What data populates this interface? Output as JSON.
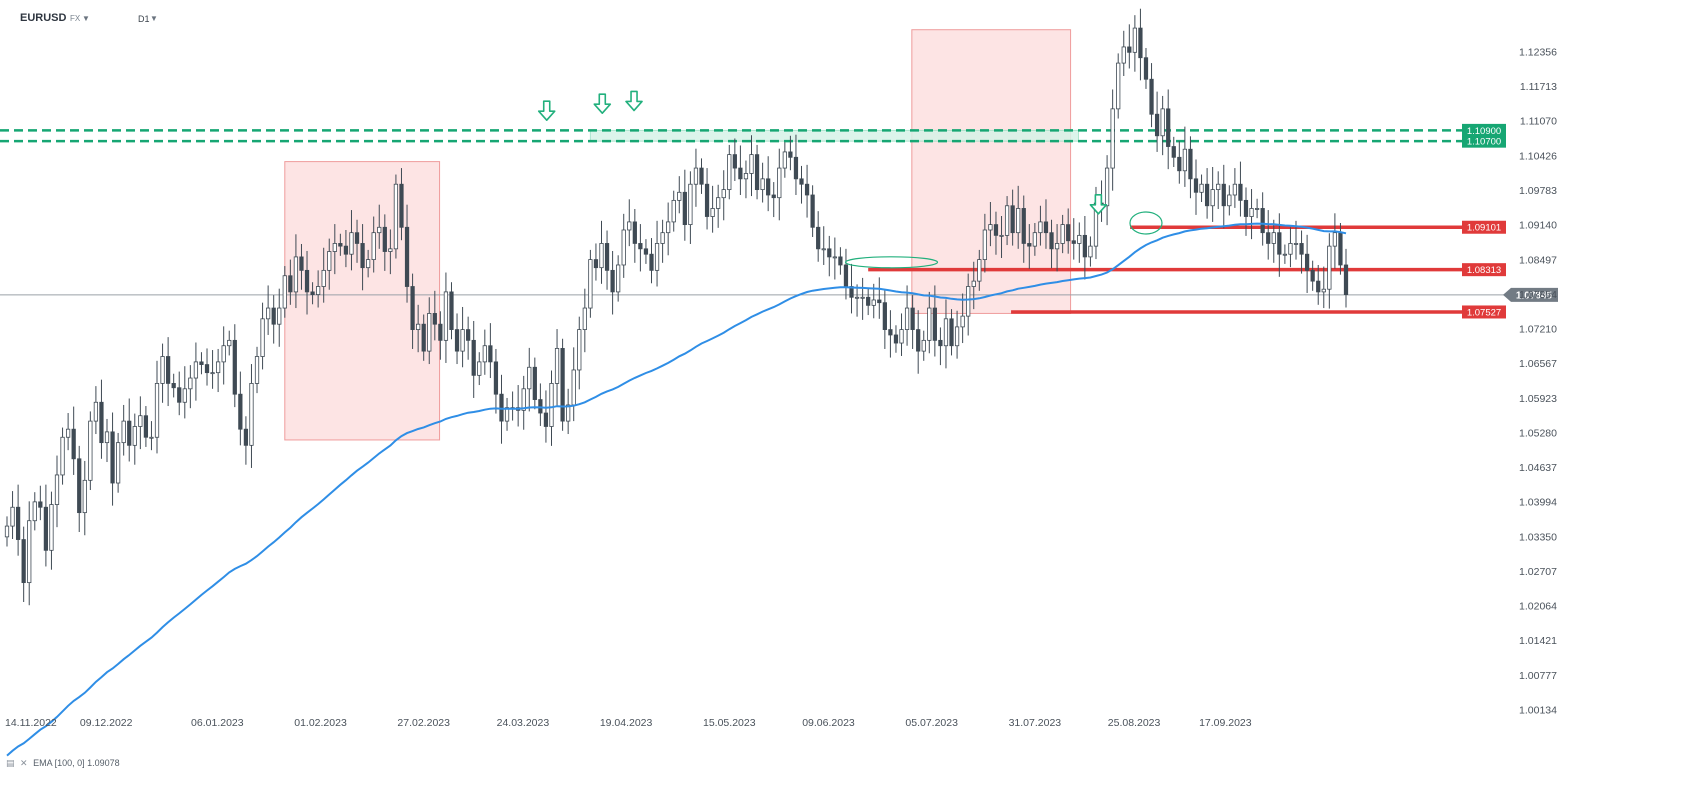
{
  "header": {
    "symbol": "EURUSD",
    "exchange": "FX",
    "timeframe": "D1"
  },
  "indicator_legend": "EMA [100, 0] 1.09078",
  "colors": {
    "bull_candle": "#ffffff",
    "bear_candle": "#3f4a54",
    "candle_outline": "#3f4a54",
    "ema_line": "#2f8ee6",
    "zone_fill": "#fde4e4",
    "zone_border": "#ef9b9b",
    "resistance_green": "#16a673",
    "level_red": "#e03a3a",
    "arrow_green": "#22b07d",
    "price_tag": "#727b84"
  },
  "chart_data": {
    "type": "candlestick",
    "ylim": [
      1.0,
      1.13
    ],
    "yticks": [
      "1.12356",
      "1.11713",
      "1.11070",
      "1.10426",
      "1.09783",
      "1.09140",
      "1.08497",
      "1.07854",
      "1.07210",
      "1.06567",
      "1.05923",
      "1.05280",
      "1.04637",
      "1.03994",
      "1.03350",
      "1.02707",
      "1.02064",
      "1.01421",
      "1.00777",
      "1.00134"
    ],
    "xticks": [
      "14.11.2022",
      "09.12.2022",
      "06.01.2023",
      "01.02.2023",
      "27.02.2023",
      "24.03.2023",
      "19.04.2023",
      "15.05.2023",
      "09.06.2023",
      "05.07.2023",
      "31.07.2023",
      "25.08.2023",
      "17.09.2023"
    ],
    "closes": [
      1.0355,
      1.039,
      1.033,
      1.025,
      1.0365,
      1.04,
      1.039,
      1.031,
      1.0395,
      1.045,
      1.052,
      1.0535,
      1.048,
      1.038,
      1.044,
      1.055,
      1.0585,
      1.051,
      1.053,
      1.0435,
      1.051,
      1.055,
      1.0505,
      1.054,
      1.056,
      1.052,
      1.052,
      1.062,
      1.067,
      1.062,
      1.0612,
      1.0585,
      1.061,
      1.063,
      1.066,
      1.0655,
      1.064,
      1.064,
      1.066,
      1.069,
      1.07,
      1.06,
      1.0535,
      1.0505,
      1.062,
      1.067,
      1.074,
      1.076,
      1.073,
      1.076,
      1.082,
      1.079,
      1.0855,
      1.083,
      1.079,
      1.0785,
      1.08,
      1.083,
      1.0865,
      1.088,
      1.0875,
      1.086,
      1.09,
      1.088,
      1.0835,
      1.085,
      1.09,
      1.091,
      1.0865,
      1.087,
      1.099,
      1.091,
      1.08,
      1.072,
      1.073,
      1.068,
      1.075,
      1.073,
      1.07,
      1.079,
      1.072,
      1.068,
      1.072,
      1.07,
      1.0635,
      1.066,
      1.069,
      1.066,
      1.06,
      1.055,
      1.0575,
      1.0575,
      1.057,
      1.061,
      1.065,
      1.059,
      1.0565,
      1.054,
      1.062,
      1.0685,
      1.055,
      1.058,
      1.0645,
      1.072,
      1.076,
      1.085,
      1.0835,
      1.088,
      1.083,
      1.079,
      1.084,
      1.0905,
      1.092,
      1.088,
      1.087,
      1.086,
      1.083,
      1.088,
      1.09,
      1.092,
      1.096,
      1.0975,
      1.0915,
      1.099,
      1.102,
      1.099,
      1.093,
      1.0945,
      1.0965,
      1.098,
      1.1045,
      1.102,
      1.1,
      1.101,
      1.1045,
      1.098,
      1.1,
      1.097,
      1.0965,
      1.102,
      1.105,
      1.104,
      1.1,
      1.099,
      1.097,
      1.091,
      1.087,
      1.087,
      1.0855,
      1.0855,
      1.084,
      1.08,
      1.078,
      1.078,
      1.078,
      1.0765,
      1.0775,
      1.077,
      1.072,
      1.071,
      1.0695,
      1.072,
      1.076,
      1.072,
      1.068,
      1.07,
      1.076,
      1.07,
      1.069,
      1.074,
      1.069,
      1.0725,
      1.0745,
      1.08,
      1.081,
      1.085,
      1.0905,
      1.0915,
      1.0895,
      1.0895,
      1.095,
      1.09,
      1.0945,
      1.088,
      1.0875,
      1.09,
      1.092,
      1.09,
      1.087,
      1.088,
      1.0915,
      1.0885,
      1.088,
      1.0895,
      1.0855,
      1.0875,
      1.0955,
      1.095,
      1.102,
      1.113,
      1.1215,
      1.1245,
      1.1235,
      1.128,
      1.1225,
      1.1185,
      1.112,
      1.108,
      1.113,
      1.106,
      1.104,
      1.1015,
      1.1055,
      1.1,
      1.0975,
      1.099,
      1.095,
      1.098,
      1.099,
      1.095,
      1.097,
      1.099,
      1.096,
      1.093,
      1.0945,
      1.0945,
      1.09,
      1.088,
      1.09,
      1.086,
      1.086,
      1.088,
      1.088,
      1.086,
      1.083,
      1.081,
      1.079,
      1.0795,
      1.0875,
      1.09,
      1.084,
      1.0785
    ],
    "ema_period": 100,
    "ema_value": 1.09078,
    "current_price": "1.07845",
    "levels": [
      {
        "label": "1.10900",
        "value": 1.109,
        "color": "green"
      },
      {
        "label": "1.10700",
        "value": 1.107,
        "color": "green"
      },
      {
        "label": "1.09101",
        "value": 1.09101,
        "color": "red"
      },
      {
        "label": "1.08313",
        "value": 1.08313,
        "color": "red"
      },
      {
        "label": "1.07527",
        "value": 1.07527,
        "color": "red"
      }
    ],
    "zones": [
      {
        "from": "23.01.2023",
        "to": "03.03.2023",
        "low": 1.0515,
        "high": 1.1032
      },
      {
        "from": "30.06.2023",
        "to": "09.08.2023",
        "low": 1.075,
        "high": 1.1277
      }
    ],
    "grid": false,
    "legend": "bottom-left"
  }
}
